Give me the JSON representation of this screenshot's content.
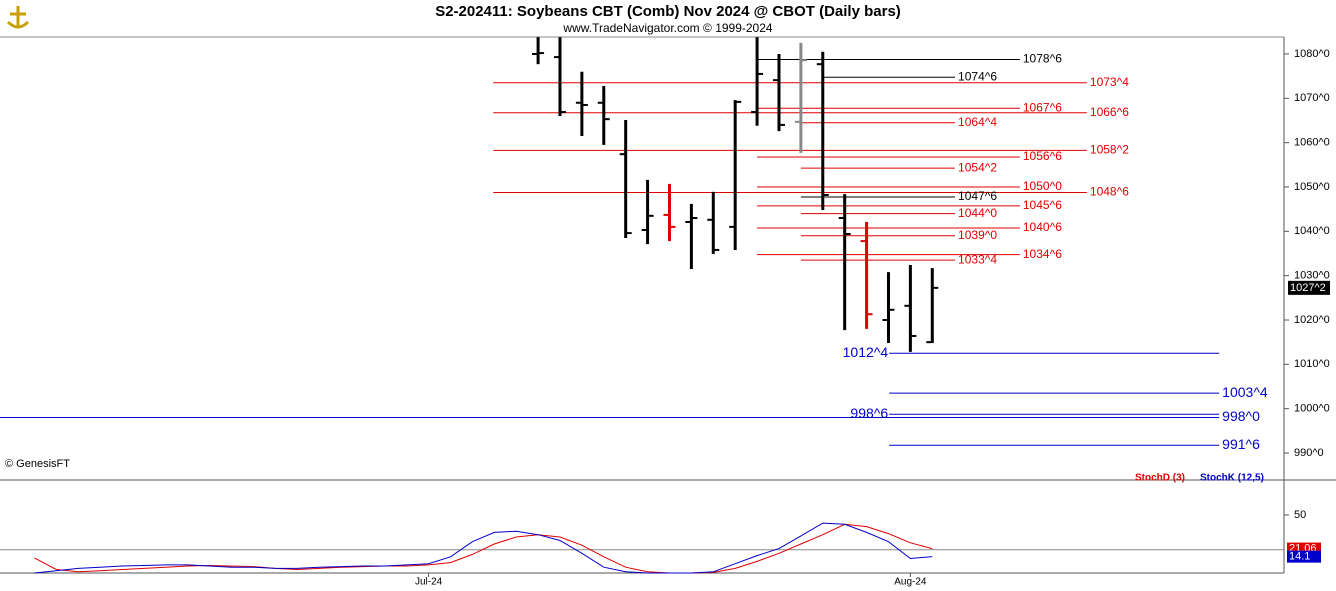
{
  "chart_data": [
    {
      "type": "ohlc",
      "title": "S2-202411:  Soybeans CBT (Comb) Nov 2024 @ CBOT  (Daily bars)",
      "subtitle": "www.TradeNavigator.com © 1999-2024",
      "watermark": "© GenesisFT",
      "x": [
        5,
        6,
        7,
        8,
        9,
        10,
        11,
        12,
        13,
        14,
        15,
        16,
        17,
        18,
        19,
        20,
        21,
        22,
        23
      ],
      "open": [
        1080,
        1079.3,
        1069,
        1069,
        1057.4,
        1040.3,
        1043.7,
        1042.1,
        1042.6,
        1041,
        1066.9,
        1074.1,
        1064.7,
        1077.7,
        1043,
        1037.8,
        1020,
        1023.2,
        1015
      ],
      "high": [
        1083.8,
        1083.8,
        1076,
        1072.8,
        1065.1,
        1051.6,
        1050.7,
        1046.2,
        1048.9,
        1069.6,
        1083.8,
        1080,
        1082.5,
        1080.5,
        1048.4,
        1042.1,
        1030.8,
        1032.4,
        1031.7
      ],
      "low": [
        1077.7,
        1066,
        1061.5,
        1059.5,
        1038.5,
        1037.1,
        1037.8,
        1031.5,
        1034.9,
        1035.8,
        1063.8,
        1062.6,
        1057.7,
        1044.8,
        1017.7,
        1018,
        1014.8,
        1012.8,
        1014.8
      ],
      "close": [
        1080.2,
        1066.9,
        1068.5,
        1065.3,
        1039.6,
        1043.5,
        1041,
        1043,
        1035.8,
        1069.2,
        1075.5,
        1064,
        1078.6,
        1048.2,
        1039.4,
        1021.3,
        1022.3,
        1016.4,
        1027.25
      ],
      "colors": [
        "#000000",
        "#000000",
        "#000000",
        "#000000",
        "#000000",
        "#000000",
        "#e00000",
        "#000000",
        "#000000",
        "#000000",
        "#000000",
        "#000000",
        "#888888",
        "#000000",
        "#000000",
        "#e00000",
        "#000000",
        "#000000",
        "#000000"
      ],
      "last_label": "1027^2",
      "xlim": [
        -19.57,
        39.06
      ],
      "ylim": [
        984.36,
        1083.83
      ],
      "yticks": [
        {
          "value": 990,
          "label": "990^0"
        },
        {
          "value": 1000,
          "label": "1000^0"
        },
        {
          "value": 1010,
          "label": "1010^0"
        },
        {
          "value": 1020,
          "label": "1020^0"
        },
        {
          "value": 1030,
          "label": "1030^0"
        },
        {
          "value": 1040,
          "label": "1040^0"
        },
        {
          "value": 1050,
          "label": "1050^0"
        },
        {
          "value": 1060,
          "label": "1060^0"
        },
        {
          "value": 1070,
          "label": "1070^0"
        },
        {
          "value": 1080,
          "label": "1080^0"
        }
      ],
      "levels": [
        {
          "label": "1078^6",
          "value": 1078.75,
          "color": "#000000",
          "from": 15,
          "to": 27,
          "side": "right"
        },
        {
          "label": "1074^6",
          "value": 1074.75,
          "color": "#000000",
          "from": 18,
          "to": 24.04,
          "side": "right"
        },
        {
          "label": "1073^4",
          "value": 1073.5,
          "color": "#e00000",
          "from": 2.95,
          "to": 30.06,
          "side": "right"
        },
        {
          "label": "1067^6",
          "value": 1067.75,
          "color": "#e00000",
          "from": 15,
          "to": 27,
          "side": "right"
        },
        {
          "label": "1066^6",
          "value": 1066.75,
          "color": "#e00000",
          "from": 2.95,
          "to": 30.06,
          "side": "right"
        },
        {
          "label": "1064^4",
          "value": 1064.5,
          "color": "#e00000",
          "from": 17,
          "to": 24.04,
          "side": "right"
        },
        {
          "label": "1058^2",
          "value": 1058.25,
          "color": "#e00000",
          "from": 2.95,
          "to": 30.06,
          "side": "right"
        },
        {
          "label": "1056^6",
          "value": 1056.75,
          "color": "#e00000",
          "from": 15,
          "to": 27,
          "side": "right"
        },
        {
          "label": "1054^2",
          "value": 1054.25,
          "color": "#e00000",
          "from": 17,
          "to": 24.04,
          "side": "right"
        },
        {
          "label": "1050^0",
          "value": 1050,
          "color": "#e00000",
          "from": 15,
          "to": 27,
          "side": "right"
        },
        {
          "label": "1048^6",
          "value": 1048.75,
          "color": "#e00000",
          "from": 2.95,
          "to": 30.06,
          "side": "right"
        },
        {
          "label": "1047^6",
          "value": 1047.75,
          "color": "#000000",
          "from": 17,
          "to": 24.04,
          "side": "right"
        },
        {
          "label": "1045^6",
          "value": 1045.75,
          "color": "#e00000",
          "from": 15,
          "to": 27,
          "side": "right"
        },
        {
          "label": "1044^0",
          "value": 1044,
          "color": "#e00000",
          "from": 17,
          "to": 24.04,
          "side": "right"
        },
        {
          "label": "1040^6",
          "value": 1040.75,
          "color": "#e00000",
          "from": 15,
          "to": 27,
          "side": "right"
        },
        {
          "label": "1039^0",
          "value": 1039,
          "color": "#e00000",
          "from": 17,
          "to": 24.04,
          "side": "right"
        },
        {
          "label": "1034^6",
          "value": 1034.75,
          "color": "#e00000",
          "from": 15,
          "to": 27,
          "side": "right"
        },
        {
          "label": "1033^4",
          "value": 1033.5,
          "color": "#e00000",
          "from": 17,
          "to": 24.04,
          "side": "right"
        },
        {
          "label": "1012^4",
          "value": 1012.5,
          "color": "#0000cc",
          "from": 21.03,
          "to": 36.1,
          "side": "left"
        },
        {
          "label": "1003^4",
          "value": 1003.5,
          "color": "#0000cc",
          "from": 21.03,
          "to": 36.1,
          "side": "right"
        },
        {
          "label": "998^6",
          "value": 998.75,
          "color": "#0000cc",
          "from": 21.03,
          "to": 36.1,
          "side": "left"
        },
        {
          "label": "998^0",
          "value": 998,
          "color": "#0000cc",
          "from": -19.57,
          "to": 36.1,
          "side": "right"
        },
        {
          "label": "991^6",
          "value": 991.75,
          "color": "#0000cc",
          "from": 21.03,
          "to": 36.1,
          "side": "right"
        }
      ]
    },
    {
      "type": "line",
      "x": [
        -18,
        -17,
        -16,
        -15,
        -14,
        -13,
        -12,
        -11,
        -10,
        -9,
        -8,
        -7,
        -6,
        -5,
        -4,
        -3,
        -2,
        -1,
        0,
        1,
        2,
        3,
        4,
        5,
        6,
        7,
        8,
        9,
        10,
        11,
        12,
        13,
        14,
        15,
        16,
        17,
        18,
        19,
        20,
        21,
        22,
        23
      ],
      "series": [
        {
          "name": "StochD (3)",
          "color": "#e00000",
          "values": [
            13,
            3,
            1,
            2,
            3,
            4,
            5,
            6,
            6.5,
            6,
            5.5,
            4,
            3,
            4,
            5,
            5.5,
            6,
            6,
            7,
            9,
            16,
            25,
            31,
            33,
            31,
            24,
            14,
            5,
            1,
            0,
            0,
            0.5,
            4,
            10,
            17,
            25,
            33,
            42,
            40,
            34,
            26,
            21.06
          ]
        },
        {
          "name": "StochK (12,5)",
          "color": "#0000cc",
          "values": [
            0,
            2,
            4,
            5,
            6,
            6.5,
            7,
            7,
            6,
            5,
            5,
            4,
            4,
            5,
            5.5,
            6,
            6,
            7,
            8,
            14,
            27,
            35,
            36,
            33,
            28,
            17,
            5,
            1,
            0,
            0,
            0,
            1,
            8,
            15,
            21,
            32,
            43,
            42,
            35,
            27,
            12.5,
            14.1
          ]
        }
      ],
      "xlim": [
        -19.57,
        39.06
      ],
      "xticks": [
        {
          "value": 0,
          "label": "Jul-24"
        },
        {
          "value": 22,
          "label": "Aug-24"
        }
      ],
      "ylim": [
        0,
        77.6
      ],
      "yticks": [
        50
      ],
      "reference_line": 20
    }
  ]
}
